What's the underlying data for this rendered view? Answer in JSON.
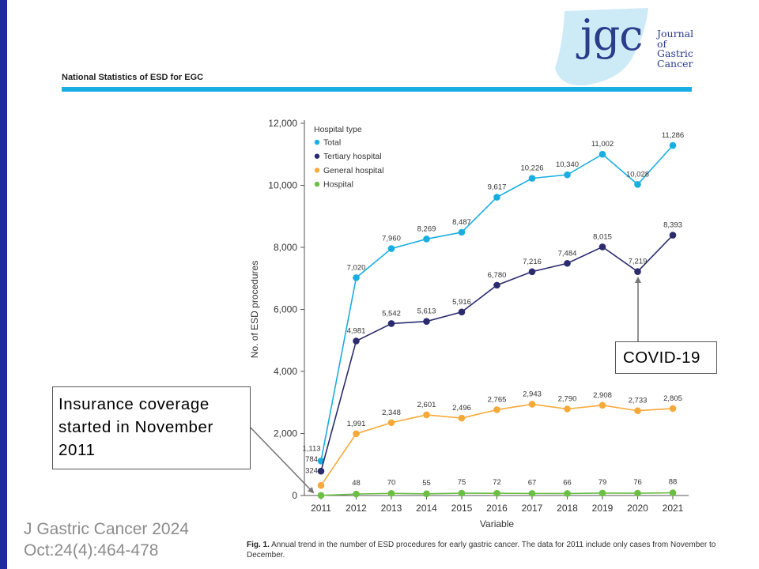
{
  "journal": {
    "logo_text": "jgc",
    "name_lines": [
      "Journal",
      "of",
      "Gastric",
      "Cancer"
    ],
    "accent_color": "#19aee3",
    "logo_color": "#2a3c8a"
  },
  "header": {
    "title": "National Statistics of ESD for EGC"
  },
  "chart_data": {
    "type": "line",
    "title": "",
    "xlabel": "Variable",
    "ylabel": "No. of ESD procedures",
    "ylim": [
      0,
      12000
    ],
    "yticks": [
      0,
      2000,
      4000,
      6000,
      8000,
      10000,
      12000
    ],
    "ytick_labels": [
      "0",
      "2,000",
      "4,000",
      "6,000",
      "8,000",
      "10,000",
      "12,000"
    ],
    "categories": [
      "2011",
      "2012",
      "2013",
      "2014",
      "2015",
      "2016",
      "2017",
      "2018",
      "2019",
      "2020",
      "2021"
    ],
    "legend": {
      "title": "Hospital type",
      "placement": "top-left"
    },
    "grid": false,
    "series": [
      {
        "name": "Total",
        "color": "#1aaee0",
        "values": [
          1113,
          7020,
          7960,
          8269,
          8487,
          9617,
          10226,
          10340,
          11002,
          10028,
          11286
        ],
        "labels": [
          "1,113",
          "7,020",
          "7,960",
          "8,269",
          "8,487",
          "9,617",
          "10,226",
          "10,340",
          "11,002",
          "10,028",
          "11,286"
        ]
      },
      {
        "name": "Tertiary hospital",
        "color": "#2b2c6e",
        "values": [
          784,
          4981,
          5542,
          5613,
          5916,
          6780,
          7216,
          7484,
          8015,
          7219,
          8393
        ],
        "labels": [
          "784",
          "4,981",
          "5,542",
          "5,613",
          "5,916",
          "6,780",
          "7,216",
          "7,484",
          "8,015",
          "7,219",
          "8,393"
        ]
      },
      {
        "name": "General hospital",
        "color": "#f5a93a",
        "values": [
          324,
          1991,
          2348,
          2601,
          2496,
          2765,
          2943,
          2790,
          2908,
          2733,
          2805
        ],
        "labels": [
          "324",
          "1,991",
          "2,348",
          "2,601",
          "2,496",
          "2,765",
          "2,943",
          "2,790",
          "2,908",
          "2,733",
          "2,805"
        ]
      },
      {
        "name": "Hospital",
        "color": "#6cbf45",
        "values": [
          5,
          48,
          70,
          55,
          75,
          72,
          67,
          66,
          79,
          76,
          88
        ],
        "labels": [
          "",
          "48",
          "70",
          "55",
          "75",
          "72",
          "67",
          "66",
          "79",
          "76",
          "88"
        ]
      }
    ],
    "annotations": [
      {
        "text": "Insurance coverage started in November 2011",
        "target_category": "2011"
      },
      {
        "text": "COVID-19",
        "target_category": "2020"
      }
    ]
  },
  "callouts": {
    "insurance": "Insurance coverage started in November 2011",
    "covid": "COVID-19"
  },
  "caption": {
    "label": "Fig. 1.",
    "text": "Annual trend in the number of ESD procedures for early gastric cancer. The data for 2011 include only cases from November to December."
  },
  "citation": {
    "line1": "J Gastric Cancer 2024",
    "line2": "Oct:24(4):464-478"
  }
}
